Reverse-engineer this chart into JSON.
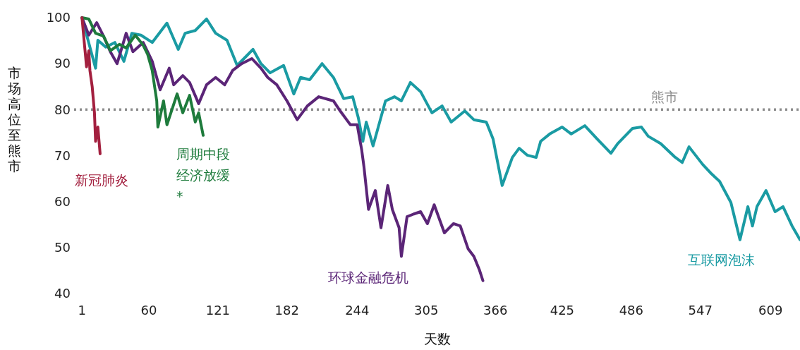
{
  "chart_data": {
    "type": "line",
    "xlabel": "天数",
    "ylabel": "市场高位至熊市",
    "xlim": [
      -6,
      635
    ],
    "ylim": [
      40,
      100
    ],
    "xticks": [
      1,
      60,
      121,
      182,
      244,
      305,
      366,
      425,
      486,
      547,
      609
    ],
    "yticks": [
      40,
      50,
      60,
      70,
      80,
      90,
      100
    ],
    "ref_lines": [
      {
        "axis": "y",
        "value": 80,
        "label": "熊市",
        "color": "#8c8c8c",
        "line_style": "dotted"
      }
    ],
    "series": [
      {
        "name": "互联网泡沫",
        "color": "#1a9ba3",
        "x": [
          1,
          13,
          15,
          22,
          30,
          38,
          45,
          53,
          63,
          76,
          86,
          92,
          101,
          111,
          119,
          129,
          138,
          146,
          152,
          159,
          167,
          179,
          188,
          194,
          202,
          213,
          223,
          232,
          240,
          245,
          249,
          252,
          258,
          269,
          277,
          283,
          291,
          300,
          310,
          319,
          327,
          339,
          347,
          358,
          364,
          372,
          381,
          387,
          394,
          402,
          406,
          414,
          425,
          433,
          445,
          456,
          468,
          474,
          487,
          495,
          501,
          512,
          524,
          531,
          537,
          549,
          557,
          564,
          574,
          582,
          589,
          593,
          597,
          605,
          613,
          620,
          628,
          635
        ],
        "values": [
          100,
          89,
          95.1,
          93.6,
          94.6,
          90.5,
          96.6,
          96.2,
          94.6,
          98.8,
          93.1,
          96.6,
          97.2,
          99.7,
          96.6,
          95.1,
          89.6,
          91.6,
          93.1,
          90,
          88,
          89.6,
          83.4,
          87,
          86.5,
          90,
          87,
          82.4,
          82.8,
          78.2,
          73.1,
          77.3,
          72.1,
          81.9,
          82.8,
          81.9,
          85.9,
          83.9,
          79.3,
          80.8,
          77.3,
          79.7,
          77.8,
          77.3,
          73.6,
          63.5,
          69.6,
          71.6,
          70.1,
          69.6,
          73.1,
          74.7,
          76.2,
          74.7,
          76.5,
          73.6,
          70.5,
          72.6,
          75.9,
          76.2,
          74.2,
          72.6,
          69.8,
          68.5,
          71.9,
          68.1,
          66,
          64.4,
          59.8,
          51.7,
          58.9,
          54.7,
          58.9,
          62.4,
          57.8,
          58.9,
          54.7,
          51.7
        ]
      },
      {
        "name": "环球金融危机",
        "color": "#5b2577",
        "x": [
          1,
          7,
          14,
          20,
          26,
          32,
          40,
          46,
          55,
          63,
          70,
          78,
          82,
          90,
          96,
          104,
          111,
          119,
          127,
          134,
          142,
          151,
          159,
          165,
          173,
          182,
          191,
          200,
          210,
          223,
          229,
          238,
          244,
          248,
          250,
          254,
          260,
          265,
          271,
          275,
          281,
          283,
          288,
          294,
          300,
          306,
          312,
          321,
          329,
          335,
          342,
          347,
          352,
          355
        ],
        "values": [
          100,
          96.2,
          98.9,
          96,
          92.6,
          90,
          96.6,
          92.6,
          94.6,
          90.5,
          84.3,
          89,
          85.4,
          87.4,
          85.9,
          81.3,
          85.4,
          87,
          85.4,
          88.5,
          90,
          91.1,
          89,
          87,
          85.4,
          81.9,
          77.8,
          80.8,
          82.8,
          81.9,
          79.7,
          76.7,
          76.7,
          71.2,
          67.5,
          58.3,
          62.4,
          54.3,
          63.5,
          58.3,
          54.3,
          48.1,
          56.7,
          57.3,
          57.8,
          55.2,
          59.3,
          53.2,
          55.2,
          54.7,
          49.7,
          48.1,
          45.1,
          42.8
        ]
      },
      {
        "name": "周期中段经济放缓*",
        "color": "#1e7b3c",
        "x": [
          1,
          7,
          13,
          20,
          26,
          34,
          40,
          48,
          55,
          59,
          63,
          67,
          68,
          73,
          76,
          85,
          90,
          96,
          101,
          104,
          108
        ],
        "values": [
          100,
          99.7,
          96.6,
          96,
          92.8,
          94.2,
          93.4,
          96.2,
          94,
          92,
          88.5,
          81.9,
          76.2,
          81.9,
          76.7,
          83.4,
          79.3,
          83.1,
          77.3,
          79.3,
          74.4
        ]
      },
      {
        "name": "新冠肺炎",
        "color": "#a3203f",
        "x": [
          1,
          3,
          4,
          5,
          7,
          8,
          10,
          12,
          13,
          15,
          17
        ],
        "values": [
          100,
          94.6,
          92,
          89.3,
          92.8,
          88.5,
          85,
          79.3,
          73.1,
          76.2,
          70.4
        ]
      }
    ]
  }
}
